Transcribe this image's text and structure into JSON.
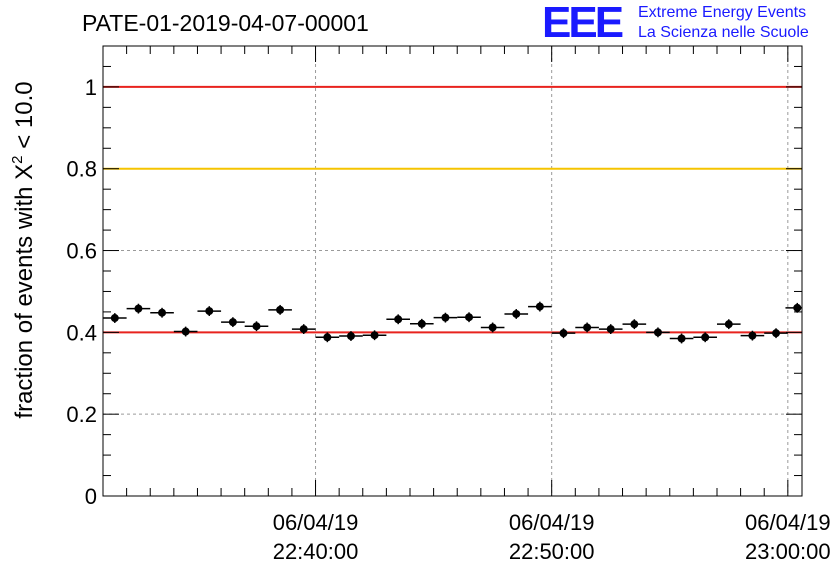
{
  "chart_data": {
    "type": "scatter",
    "title": "PATE-01-2019-04-07-00001",
    "ylabel_prefix": "fraction of events with ",
    "ylabel_symbol": "X",
    "ylabel_power": "2",
    "ylabel_suffix": " < 10.0",
    "xlabel": "",
    "ylim": [
      0,
      1.1
    ],
    "y_ticks": [
      0,
      0.2,
      0.4,
      0.6,
      0.8,
      1
    ],
    "y_tick_labels": [
      "0",
      "0.2",
      "0.4",
      "0.6",
      "0.8",
      "1"
    ],
    "x_range_minutes": [
      31.0,
      60.6
    ],
    "x_ticks": [
      {
        "minute": 40,
        "date": "06/04/19",
        "time": "22:40:00"
      },
      {
        "minute": 50,
        "date": "06/04/19",
        "time": "22:50:00"
      },
      {
        "minute": 60,
        "date": "06/04/19",
        "time": "23:00:00"
      }
    ],
    "bin_width_minutes": 1.0,
    "x_minutes": [
      31.5,
      32.5,
      33.5,
      34.5,
      35.5,
      36.5,
      37.5,
      38.5,
      39.5,
      40.5,
      41.5,
      42.5,
      43.5,
      44.5,
      45.5,
      46.5,
      47.5,
      48.5,
      49.5,
      50.5,
      51.5,
      52.5,
      53.5,
      54.5,
      55.5,
      56.5,
      57.5,
      58.5,
      59.5,
      60.4
    ],
    "y": [
      0.435,
      0.458,
      0.448,
      0.402,
      0.452,
      0.425,
      0.415,
      0.455,
      0.408,
      0.388,
      0.391,
      0.393,
      0.432,
      0.421,
      0.436,
      0.437,
      0.412,
      0.445,
      0.463,
      0.398,
      0.412,
      0.408,
      0.42,
      0.4,
      0.385,
      0.388,
      0.42,
      0.392,
      0.398,
      0.46
    ],
    "y_err": [
      0.012,
      0.012,
      0.012,
      0.012,
      0.012,
      0.012,
      0.012,
      0.012,
      0.012,
      0.012,
      0.012,
      0.012,
      0.012,
      0.012,
      0.012,
      0.012,
      0.012,
      0.012,
      0.012,
      0.012,
      0.012,
      0.012,
      0.012,
      0.012,
      0.012,
      0.012,
      0.012,
      0.012,
      0.012,
      0.012
    ],
    "reference_lines": [
      {
        "y": 1.0,
        "color": "#e8231e"
      },
      {
        "y": 0.8,
        "color": "#f5c400"
      },
      {
        "y": 0.4,
        "color": "#e8231e"
      }
    ],
    "grid": true,
    "point_color": "#000000"
  },
  "logo": {
    "mark": "EEE",
    "line1": "Extreme Energy Events",
    "line2": "La Scienza nelle Scuole",
    "color": "#1a1aff"
  }
}
